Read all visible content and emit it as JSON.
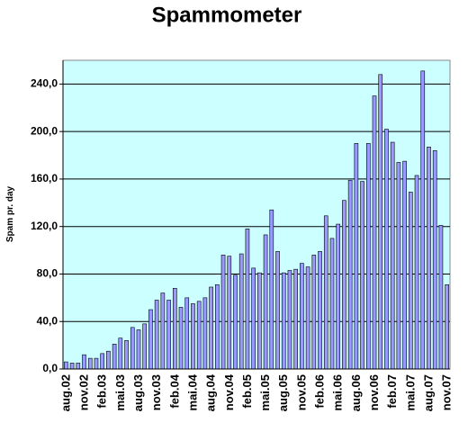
{
  "chart_data": {
    "type": "bar",
    "title": "Spammometer",
    "y_label": "Spam pr. day",
    "categories": [
      "aug.02",
      null,
      null,
      "nov.02",
      null,
      null,
      "feb.03",
      null,
      null,
      "mai.03",
      null,
      null,
      "aug.03",
      null,
      null,
      "nov.03",
      null,
      null,
      "feb.04",
      null,
      null,
      "mai.04",
      null,
      null,
      "aug.04",
      null,
      null,
      "nov.04",
      null,
      null,
      "feb.05",
      null,
      null,
      "mai.05",
      null,
      null,
      "aug.05",
      null,
      null,
      "nov.05",
      null,
      null,
      "feb.06",
      null,
      null,
      "mai.06",
      null,
      null,
      "aug.06",
      null,
      null,
      "nov.06",
      null,
      null,
      "feb.07",
      null,
      null,
      "mai.07",
      null,
      null,
      "aug.07",
      null,
      null,
      "nov.07"
    ],
    "values": [
      6,
      5,
      5,
      12,
      9,
      9,
      13,
      15,
      21,
      26,
      24,
      35,
      33,
      38,
      50,
      58,
      64,
      58,
      68,
      52,
      60,
      55,
      57,
      60,
      69,
      71,
      96,
      95,
      79,
      97,
      118,
      85,
      81,
      113,
      134,
      99,
      81,
      83,
      84,
      89,
      86,
      96,
      99,
      129,
      110,
      122,
      142,
      159,
      190,
      158,
      190,
      230,
      248,
      202,
      191,
      174,
      175,
      149,
      163,
      251,
      187,
      184,
      121,
      71
    ],
    "color": "#9999ff",
    "background": "#ccffff",
    "ylim": [
      0,
      260
    ],
    "yticks": [
      {
        "value": 0,
        "label": "0,0"
      },
      {
        "value": 40,
        "label": "40,0"
      },
      {
        "value": 80,
        "label": "80,0"
      },
      {
        "value": 120,
        "label": "120,0"
      },
      {
        "value": 160,
        "label": "160,0"
      },
      {
        "value": 200,
        "label": "200,0"
      },
      {
        "value": 240,
        "label": "240,0"
      }
    ],
    "grid": true
  }
}
